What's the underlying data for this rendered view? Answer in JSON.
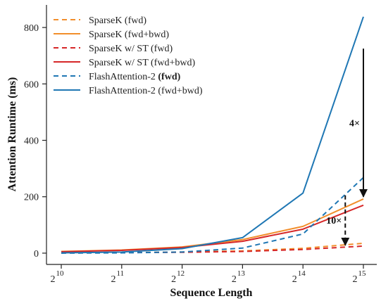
{
  "chart_data": {
    "type": "line",
    "xlabel": "Sequence Length",
    "ylabel": "Attention Runtime (ms)",
    "x_base": "2",
    "x_exponents": [
      "10",
      "11",
      "12",
      "13",
      "14",
      "15"
    ],
    "x_scale": "log2",
    "ylim": [
      -40,
      880
    ],
    "yticks": [
      0,
      200,
      400,
      600,
      800
    ],
    "grid": false,
    "legend_position": "top-left",
    "series": [
      {
        "name": "SparseK (fwd)",
        "color": "#f28e2b",
        "style": "dashed",
        "values": [
          1,
          2,
          4,
          8,
          17,
          35
        ]
      },
      {
        "name": "SparseK (fwd+bwd)",
        "color": "#f28e2b",
        "style": "solid",
        "values": [
          6,
          11,
          22,
          48,
          95,
          192
        ]
      },
      {
        "name": "SparseK w/ ST (fwd)",
        "color": "#d62728",
        "style": "dashed",
        "values": [
          1,
          2,
          3,
          6,
          13,
          25
        ]
      },
      {
        "name": "SparseK w/ ST (fwd+bwd)",
        "color": "#d62728",
        "style": "solid",
        "values": [
          5,
          10,
          20,
          42,
          85,
          170
        ]
      },
      {
        "name": "FlashAttention-2 (fwd)",
        "color": "#1f77b4",
        "style": "dashed",
        "values": [
          0,
          1,
          4,
          18,
          68,
          268
        ]
      },
      {
        "name": "FlashAttention-2 (fwd+bwd)",
        "color": "#1f77b4",
        "style": "solid",
        "values": [
          1,
          4,
          16,
          55,
          213,
          838
        ]
      }
    ],
    "legend": [
      {
        "text": "SparseK (fwd)"
      },
      {
        "text": "SparseK (fwd+bwd)"
      },
      {
        "text": "SparseK w/ ST (fwd)"
      },
      {
        "text": "SparseK w/ ST (fwd+bwd)"
      },
      {
        "text": "FlashAttention-2",
        "bold": "(fwd)"
      },
      {
        "text": "FlashAttention-2 (fwd+bwd)"
      }
    ],
    "annotations": [
      {
        "text": "4×",
        "style": "solid",
        "x_exp": 15,
        "from": 725,
        "to": 200
      },
      {
        "text": "10×",
        "style": "dashed",
        "x_exp": 14.7,
        "from": 205,
        "to": 28
      }
    ]
  }
}
